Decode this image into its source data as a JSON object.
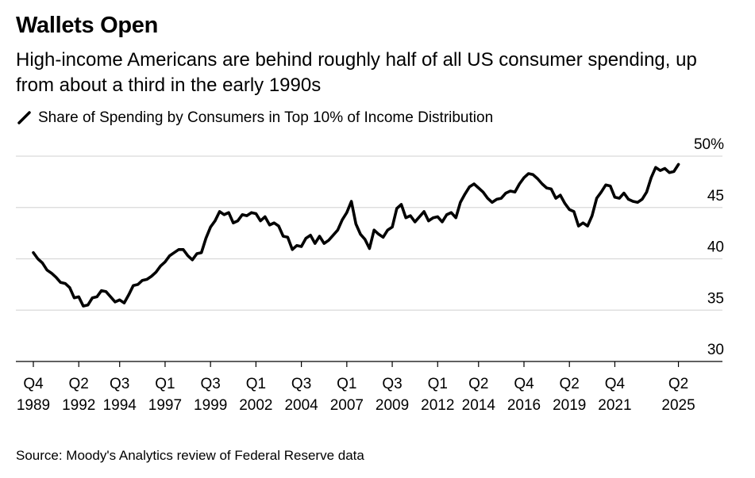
{
  "title": "Wallets Open",
  "subtitle": "High-income Americans are behind roughly half of all US consumer spending, up from about a third in the early 1990s",
  "source": "Source: Moody's Analytics review of Federal Reserve data",
  "colors": {
    "line": "#000000",
    "grid": "#d9d9d9",
    "axis": "#000000"
  },
  "chart_data": {
    "type": "line",
    "title": "Wallets Open",
    "ylim": [
      30,
      50
    ],
    "yticks": [
      {
        "value": 50,
        "label": "50%"
      },
      {
        "value": 45,
        "label": "45"
      },
      {
        "value": 40,
        "label": "40"
      },
      {
        "value": 35,
        "label": "35"
      },
      {
        "value": 30,
        "label": "30"
      }
    ],
    "xlim": [
      1989.75,
      2025.75
    ],
    "xticks": [
      {
        "value": 1989.75,
        "q": "Q4",
        "year": "1989"
      },
      {
        "value": 1992.25,
        "q": "Q2",
        "year": "1992"
      },
      {
        "value": 1994.5,
        "q": "Q3",
        "year": "1994"
      },
      {
        "value": 1997.0,
        "q": "Q1",
        "year": "1997"
      },
      {
        "value": 1999.5,
        "q": "Q3",
        "year": "1999"
      },
      {
        "value": 2002.0,
        "q": "Q1",
        "year": "2002"
      },
      {
        "value": 2004.5,
        "q": "Q3",
        "year": "2004"
      },
      {
        "value": 2007.0,
        "q": "Q1",
        "year": "2007"
      },
      {
        "value": 2009.5,
        "q": "Q3",
        "year": "2009"
      },
      {
        "value": 2012.0,
        "q": "Q1",
        "year": "2012"
      },
      {
        "value": 2014.25,
        "q": "Q2",
        "year": "2014"
      },
      {
        "value": 2016.75,
        "q": "Q4",
        "year": "2016"
      },
      {
        "value": 2019.25,
        "q": "Q2",
        "year": "2019"
      },
      {
        "value": 2021.75,
        "q": "Q4",
        "year": "2021"
      },
      {
        "value": 2025.25,
        "q": "Q2",
        "year": "2025"
      }
    ],
    "grid": true,
    "series": [
      {
        "name": "Share of Spending by Consumers in Top 10% of Income Distribution",
        "points": [
          [
            1989.75,
            40.6
          ],
          [
            1990.0,
            40.0
          ],
          [
            1990.25,
            39.6
          ],
          [
            1990.5,
            38.9
          ],
          [
            1990.75,
            38.6
          ],
          [
            1991.0,
            38.2
          ],
          [
            1991.25,
            37.7
          ],
          [
            1991.5,
            37.6
          ],
          [
            1991.75,
            37.2
          ],
          [
            1992.0,
            36.2
          ],
          [
            1992.25,
            36.3
          ],
          [
            1992.5,
            35.4
          ],
          [
            1992.75,
            35.5
          ],
          [
            1993.0,
            36.2
          ],
          [
            1993.25,
            36.3
          ],
          [
            1993.5,
            36.9
          ],
          [
            1993.75,
            36.8
          ],
          [
            1994.0,
            36.3
          ],
          [
            1994.25,
            35.8
          ],
          [
            1994.5,
            36.0
          ],
          [
            1994.75,
            35.7
          ],
          [
            1995.0,
            36.5
          ],
          [
            1995.25,
            37.4
          ],
          [
            1995.5,
            37.5
          ],
          [
            1995.75,
            37.9
          ],
          [
            1996.0,
            38.0
          ],
          [
            1996.25,
            38.3
          ],
          [
            1996.5,
            38.7
          ],
          [
            1996.75,
            39.3
          ],
          [
            1997.0,
            39.7
          ],
          [
            1997.25,
            40.3
          ],
          [
            1997.5,
            40.6
          ],
          [
            1997.75,
            40.9
          ],
          [
            1998.0,
            40.9
          ],
          [
            1998.25,
            40.3
          ],
          [
            1998.5,
            39.9
          ],
          [
            1998.75,
            40.5
          ],
          [
            1999.0,
            40.6
          ],
          [
            1999.25,
            42.0
          ],
          [
            1999.5,
            43.1
          ],
          [
            1999.75,
            43.7
          ],
          [
            2000.0,
            44.6
          ],
          [
            2000.25,
            44.3
          ],
          [
            2000.5,
            44.5
          ],
          [
            2000.75,
            43.5
          ],
          [
            2001.0,
            43.7
          ],
          [
            2001.25,
            44.3
          ],
          [
            2001.5,
            44.2
          ],
          [
            2001.75,
            44.5
          ],
          [
            2002.0,
            44.4
          ],
          [
            2002.25,
            43.7
          ],
          [
            2002.5,
            44.1
          ],
          [
            2002.75,
            43.3
          ],
          [
            2003.0,
            43.5
          ],
          [
            2003.25,
            43.2
          ],
          [
            2003.5,
            42.2
          ],
          [
            2003.75,
            42.1
          ],
          [
            2004.0,
            40.9
          ],
          [
            2004.25,
            41.3
          ],
          [
            2004.5,
            41.2
          ],
          [
            2004.75,
            42.0
          ],
          [
            2005.0,
            42.3
          ],
          [
            2005.25,
            41.5
          ],
          [
            2005.5,
            42.2
          ],
          [
            2005.75,
            41.5
          ],
          [
            2006.0,
            41.8
          ],
          [
            2006.25,
            42.3
          ],
          [
            2006.5,
            42.8
          ],
          [
            2006.75,
            43.8
          ],
          [
            2007.0,
            44.5
          ],
          [
            2007.25,
            45.6
          ],
          [
            2007.5,
            43.4
          ],
          [
            2007.75,
            42.4
          ],
          [
            2008.0,
            41.9
          ],
          [
            2008.25,
            41.0
          ],
          [
            2008.5,
            42.8
          ],
          [
            2008.75,
            42.4
          ],
          [
            2009.0,
            42.1
          ],
          [
            2009.25,
            42.8
          ],
          [
            2009.5,
            43.1
          ],
          [
            2009.75,
            44.9
          ],
          [
            2010.0,
            45.3
          ],
          [
            2010.25,
            44.0
          ],
          [
            2010.5,
            44.2
          ],
          [
            2010.75,
            43.6
          ],
          [
            2011.0,
            44.1
          ],
          [
            2011.25,
            44.6
          ],
          [
            2011.5,
            43.7
          ],
          [
            2011.75,
            44.0
          ],
          [
            2012.0,
            44.1
          ],
          [
            2012.25,
            43.6
          ],
          [
            2012.5,
            44.3
          ],
          [
            2012.75,
            44.5
          ],
          [
            2013.0,
            44.0
          ],
          [
            2013.25,
            45.5
          ],
          [
            2013.5,
            46.3
          ],
          [
            2013.75,
            47.0
          ],
          [
            2014.0,
            47.3
          ],
          [
            2014.25,
            46.9
          ],
          [
            2014.5,
            46.5
          ],
          [
            2014.75,
            45.9
          ],
          [
            2015.0,
            45.5
          ],
          [
            2015.25,
            45.8
          ],
          [
            2015.5,
            45.9
          ],
          [
            2015.75,
            46.4
          ],
          [
            2016.0,
            46.6
          ],
          [
            2016.25,
            46.5
          ],
          [
            2016.5,
            47.3
          ],
          [
            2016.75,
            47.9
          ],
          [
            2017.0,
            48.3
          ],
          [
            2017.25,
            48.2
          ],
          [
            2017.5,
            47.8
          ],
          [
            2017.75,
            47.3
          ],
          [
            2018.0,
            46.9
          ],
          [
            2018.25,
            46.8
          ],
          [
            2018.5,
            45.9
          ],
          [
            2018.75,
            46.2
          ],
          [
            2019.0,
            45.4
          ],
          [
            2019.25,
            44.8
          ],
          [
            2019.5,
            44.6
          ],
          [
            2019.75,
            43.2
          ],
          [
            2020.0,
            43.5
          ],
          [
            2020.25,
            43.2
          ],
          [
            2020.5,
            44.2
          ],
          [
            2020.75,
            45.9
          ],
          [
            2021.0,
            46.5
          ],
          [
            2021.25,
            47.2
          ],
          [
            2021.5,
            47.1
          ],
          [
            2021.75,
            46.0
          ],
          [
            2022.0,
            45.9
          ],
          [
            2022.25,
            46.4
          ],
          [
            2022.5,
            45.8
          ],
          [
            2022.75,
            45.6
          ],
          [
            2023.0,
            45.5
          ],
          [
            2023.25,
            45.8
          ],
          [
            2023.5,
            46.5
          ],
          [
            2023.75,
            47.9
          ],
          [
            2024.0,
            48.9
          ],
          [
            2024.25,
            48.6
          ],
          [
            2024.5,
            48.8
          ],
          [
            2024.75,
            48.4
          ],
          [
            2025.0,
            48.5
          ],
          [
            2025.25,
            49.2
          ]
        ]
      }
    ]
  }
}
